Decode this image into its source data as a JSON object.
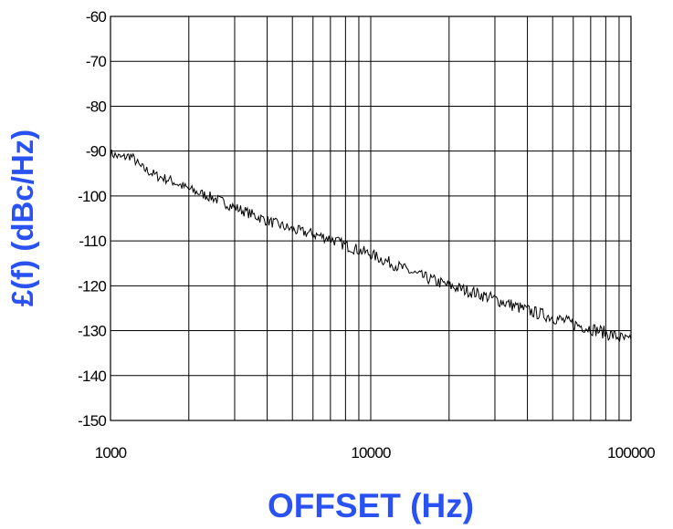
{
  "chart_data": {
    "type": "line",
    "title": "",
    "xlabel": "OFFSET (Hz)",
    "ylabel": "£(f) (dBc/Hz)",
    "x_scale": "log",
    "xlim": [
      1000,
      100000
    ],
    "ylim": [
      -150,
      -60
    ],
    "x_ticks": [
      1000,
      10000,
      100000
    ],
    "x_tick_labels": [
      "1000",
      "10000",
      "100000"
    ],
    "y_ticks": [
      -60,
      -70,
      -80,
      -90,
      -100,
      -110,
      -120,
      -130,
      -140,
      -150
    ],
    "y_tick_labels": [
      "-60",
      "-70",
      "-80",
      "-90",
      "-100",
      "-110",
      "-120",
      "-130",
      "-140",
      "-150"
    ],
    "grid": true,
    "legend": "none",
    "colors": {
      "axis_title": "#2a52f2",
      "line": "#000000",
      "grid": "#000000"
    },
    "series": [
      {
        "x": [
          1000,
          1100,
          1200,
          1300,
          1400,
          1500,
          1700,
          2000,
          2500,
          3000,
          4000,
          5000,
          6000,
          7000,
          8000,
          10000,
          12000,
          15000,
          20000,
          25000,
          30000,
          40000,
          50000,
          60000,
          70000,
          80000,
          90000,
          100000
        ],
        "y": [
          -90.5,
          -91.5,
          -91,
          -93.5,
          -94.5,
          -95.5,
          -96.5,
          -98.5,
          -100.5,
          -102.5,
          -105.5,
          -107.5,
          -108.5,
          -109.5,
          -111,
          -113,
          -115,
          -117.5,
          -120,
          -121.5,
          -123,
          -125.5,
          -127,
          -128.5,
          -129.5,
          -130.5,
          -131.5,
          -132.5
        ]
      }
    ]
  }
}
